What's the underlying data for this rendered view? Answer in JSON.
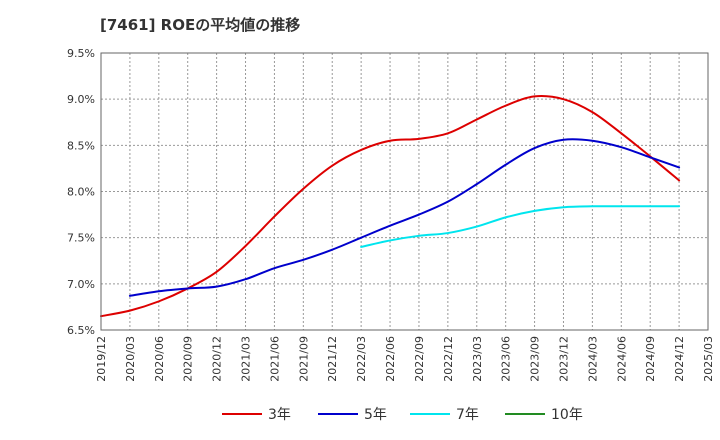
{
  "chart_data": {
    "type": "line",
    "title": "[7461]  ROEの平均値の推移",
    "xlabel": "",
    "ylabel": "",
    "ylim": [
      6.5,
      9.5
    ],
    "yticks": [
      6.5,
      7.0,
      7.5,
      8.0,
      8.5,
      9.0,
      9.5
    ],
    "ytick_labels": [
      "6.5%",
      "7.0%",
      "7.5%",
      "8.0%",
      "8.5%",
      "9.0%",
      "9.5%"
    ],
    "x_labels": [
      "2019/12",
      "2020/03",
      "2020/06",
      "2020/09",
      "2020/12",
      "2021/03",
      "2021/06",
      "2021/09",
      "2021/12",
      "2022/03",
      "2022/06",
      "2022/09",
      "2022/12",
      "2023/03",
      "2023/06",
      "2023/09",
      "2023/12",
      "2024/03",
      "2024/06",
      "2024/09",
      "2024/12",
      "2025/03"
    ],
    "grid": true,
    "legend_position": "bottom",
    "series": [
      {
        "name": "3年",
        "color": "#dd0000",
        "start_index": 0,
        "values": [
          6.65,
          6.71,
          6.81,
          6.95,
          7.13,
          7.41,
          7.73,
          8.03,
          8.28,
          8.45,
          8.55,
          8.57,
          8.63,
          8.78,
          8.93,
          9.03,
          9.0,
          8.86,
          8.63,
          8.38,
          8.12
        ]
      },
      {
        "name": "5年",
        "color": "#0000cc",
        "start_index": 1,
        "values": [
          6.87,
          6.92,
          6.95,
          6.97,
          7.05,
          7.17,
          7.26,
          7.37,
          7.5,
          7.63,
          7.75,
          7.89,
          8.08,
          8.29,
          8.47,
          8.56,
          8.55,
          8.48,
          8.37,
          8.26
        ]
      },
      {
        "name": "7年",
        "color": "#00e5ee",
        "start_index": 9,
        "values": [
          7.4,
          7.47,
          7.52,
          7.55,
          7.62,
          7.72,
          7.79,
          7.83,
          7.84,
          7.84,
          7.84,
          7.84
        ]
      },
      {
        "name": "10年",
        "color": "#228b22",
        "start_index": 0,
        "values": []
      }
    ]
  }
}
